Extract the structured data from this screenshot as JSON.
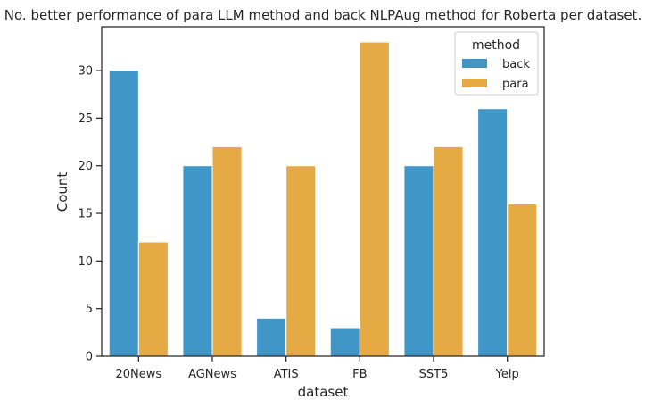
{
  "chart_data": {
    "type": "bar",
    "title": "No. better performance of para LLM method and back NLPAug method for Roberta per dataset.",
    "xlabel": "dataset",
    "ylabel": "Count",
    "categories": [
      "20News",
      "AGNews",
      "ATIS",
      "FB",
      "SST5",
      "Yelp"
    ],
    "series": [
      {
        "name": "back",
        "color": "#4196c8",
        "values": [
          30,
          20,
          4,
          3,
          20,
          26
        ]
      },
      {
        "name": "para",
        "color": "#e6aa44",
        "values": [
          12,
          22,
          20,
          33,
          22,
          16
        ]
      }
    ],
    "ylim": [
      0,
      34.6
    ],
    "yticks": [
      "0",
      "5",
      "10",
      "15",
      "20",
      "25",
      "30"
    ],
    "grid": false,
    "legend": {
      "title": "method",
      "placement": "top-right"
    }
  }
}
